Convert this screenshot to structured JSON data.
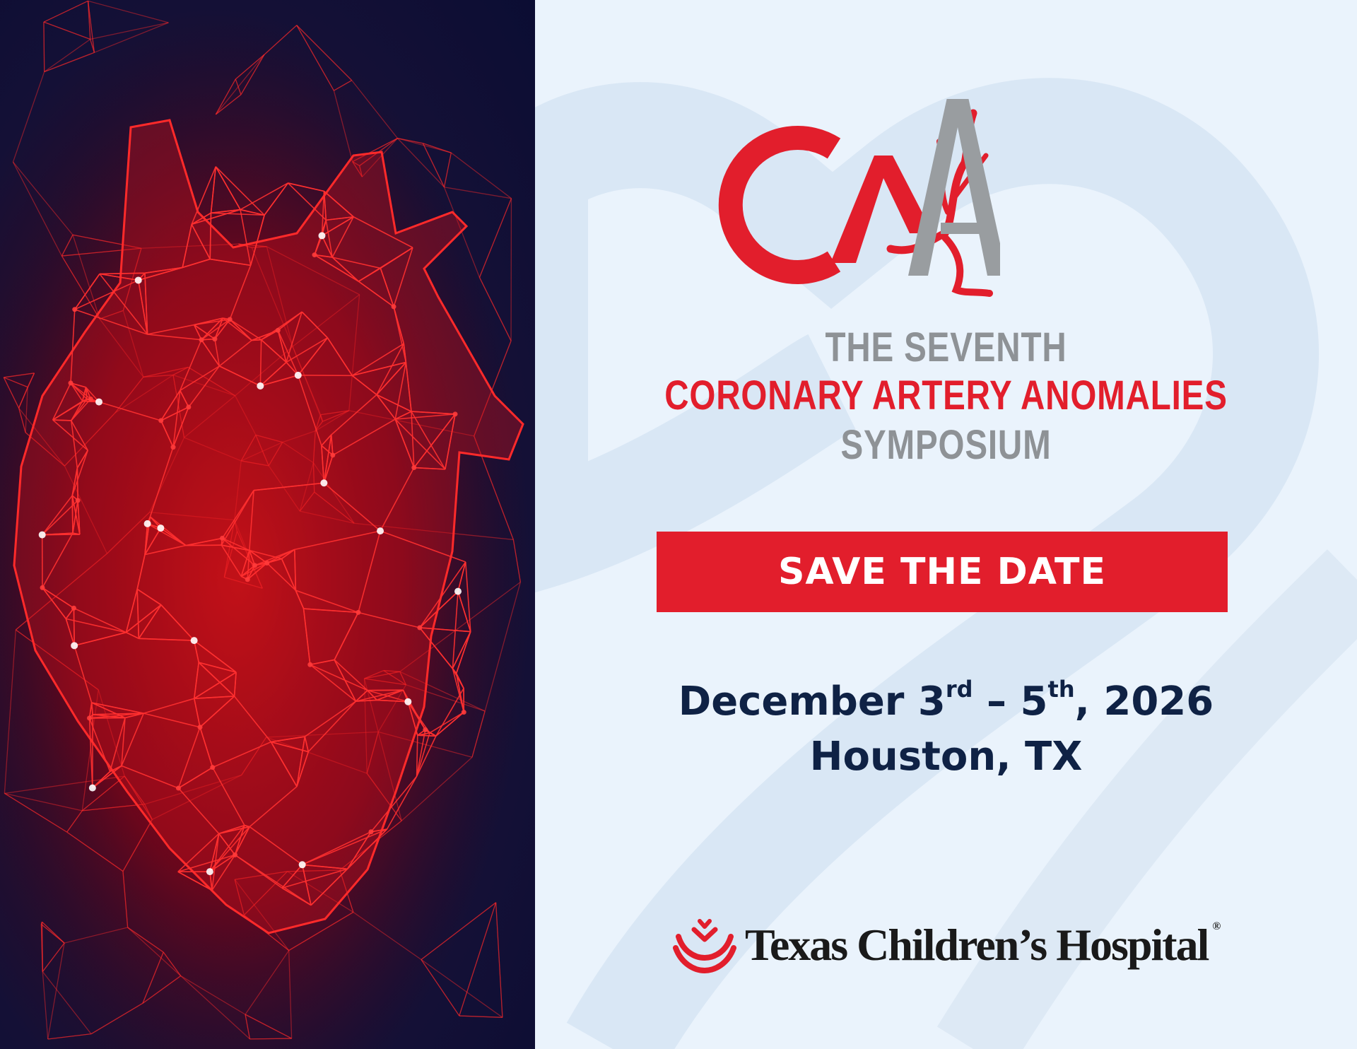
{
  "logo": {
    "letters_red": "CA",
    "letter_gray": "A",
    "colors": {
      "red": "#e21e2c",
      "gray": "#999da0"
    }
  },
  "event": {
    "title_line_1": "THE SEVENTH",
    "title_line_2": "CORONARY ARTERY ANOMALIES",
    "title_line_3": "SYMPOSIUM",
    "save_the_date": "SAVE THE DATE",
    "date_month": "December 3",
    "date_start_suffix": "rd",
    "date_separator": " – 5",
    "date_end_suffix": "th",
    "date_year": ", 2026",
    "location": "Houston, TX"
  },
  "sponsor": {
    "name": "Texas Children’s Hospital",
    "registered_mark": "®",
    "icon": "hands-cradle-icon"
  },
  "colors": {
    "accent_red": "#e21e2c",
    "gray_text": "#8e9296",
    "navy_text": "#0f2245",
    "panel_background": "#eaf3fc",
    "art_background": "#0b0d33"
  }
}
